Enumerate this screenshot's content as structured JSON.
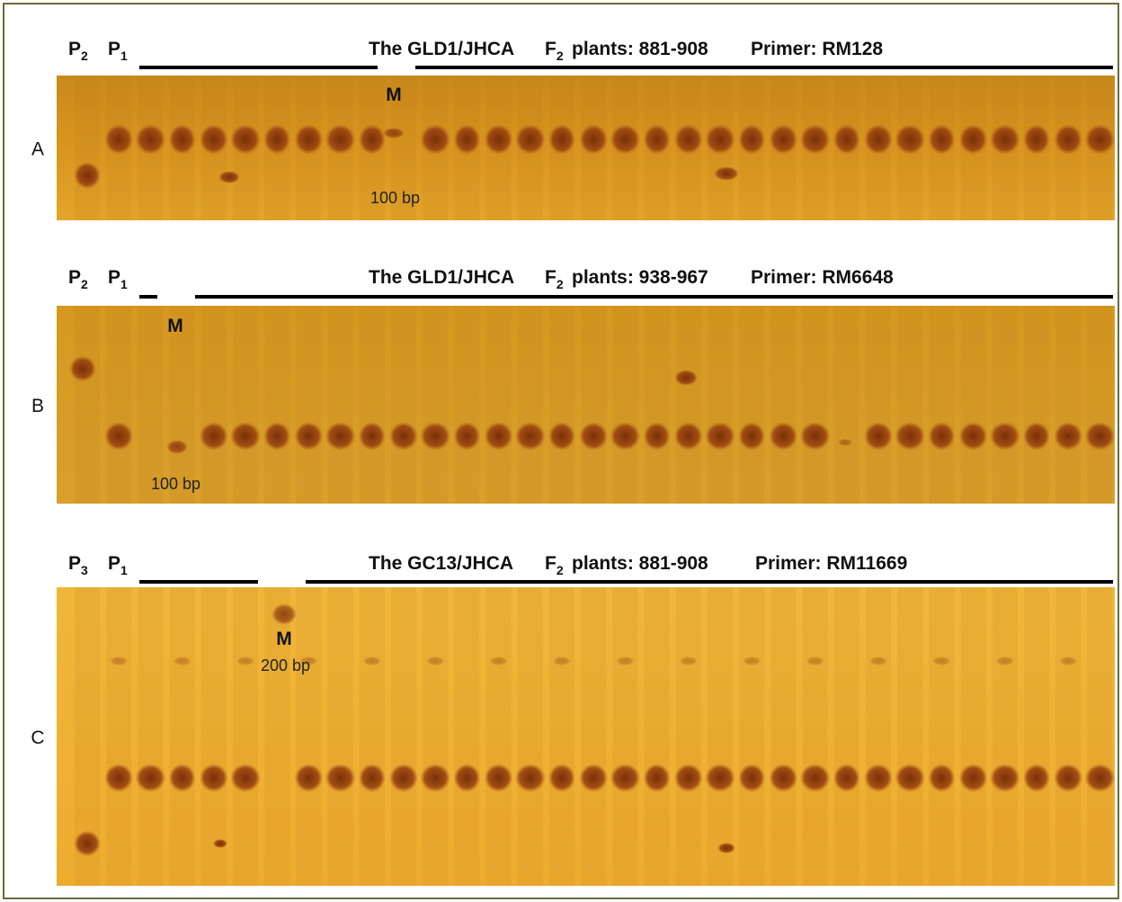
{
  "panels": [
    {
      "label": "A",
      "parents": [
        {
          "text": "P",
          "sub": "2"
        },
        {
          "text": "P",
          "sub": "1"
        }
      ],
      "cross": "The GLD1/JHCA",
      "generation": {
        "text": "F",
        "sub": "2"
      },
      "plants": "plants: 881-908",
      "primer": "Primer: RM128",
      "marker": "M",
      "marker_size": "100 bp"
    },
    {
      "label": "B",
      "parents": [
        {
          "text": "P",
          "sub": "2"
        },
        {
          "text": "P",
          "sub": "1"
        }
      ],
      "cross": "The GLD1/JHCA",
      "generation": {
        "text": "F",
        "sub": "2"
      },
      "plants": "plants: 938-967",
      "primer": "Primer: RM6648",
      "marker": "M",
      "marker_size": "100 bp"
    },
    {
      "label": "C",
      "parents": [
        {
          "text": "P",
          "sub": "3"
        },
        {
          "text": "P",
          "sub": "1"
        }
      ],
      "cross": "The GC13/JHCA",
      "generation": {
        "text": "F",
        "sub": "2"
      },
      "plants": "plants: 881-908",
      "primer": "Primer: RM11669",
      "marker": "M",
      "marker_size": "200 bp"
    }
  ]
}
